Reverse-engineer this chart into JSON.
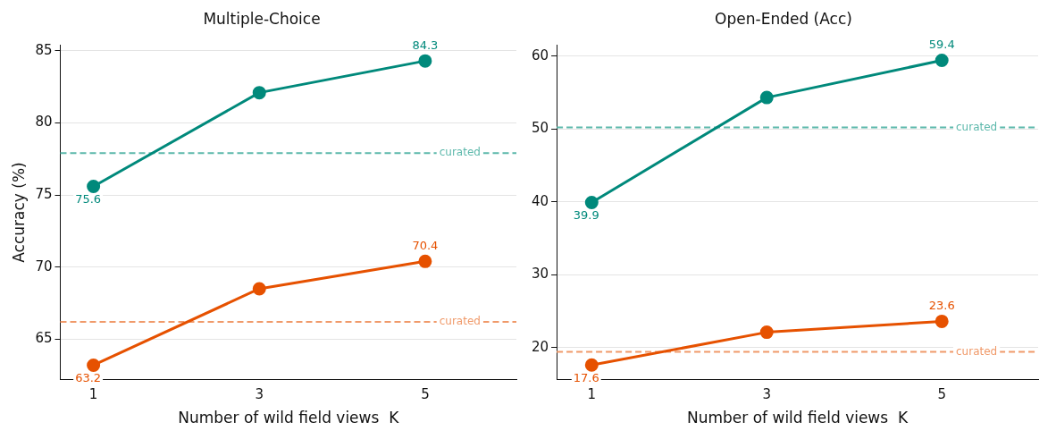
{
  "chart_data": [
    {
      "type": "line",
      "title": "Multiple-Choice",
      "xlabel": "Number of wild field views  K",
      "ylabel": "Accuracy (%)",
      "x": [
        1,
        3,
        5
      ],
      "xlim": [
        0.6,
        6.1
      ],
      "xticks": [
        1,
        3,
        5
      ],
      "ylim": [
        62.2,
        85.4
      ],
      "yticks": [
        65,
        70,
        75,
        80,
        85
      ],
      "grid": "y",
      "marker": "circle",
      "series": [
        {
          "color": "#00897b",
          "values": [
            75.6,
            82.1,
            84.3
          ],
          "value_labels": [
            "75.6",
            null,
            "84.3"
          ]
        },
        {
          "color": "#e65100",
          "values": [
            63.2,
            68.5,
            70.4
          ],
          "value_labels": [
            "63.2",
            null,
            "70.4"
          ]
        }
      ],
      "ref_lines": [
        {
          "axis": "y",
          "value": 77.9,
          "label": "curated",
          "color": "#5cb8ab",
          "line_style": "dashed"
        },
        {
          "axis": "y",
          "value": 66.2,
          "label": "curated",
          "color": "#f09a6a",
          "line_style": "dashed"
        }
      ]
    },
    {
      "type": "line",
      "title": "Open-Ended (Acc)",
      "xlabel": "Number of wild field views  K",
      "x": [
        1,
        3,
        5
      ],
      "xlim": [
        0.6,
        6.1
      ],
      "xticks": [
        1,
        3,
        5
      ],
      "ylim": [
        15.6,
        61.5
      ],
      "yticks": [
        20,
        30,
        40,
        50,
        60
      ],
      "grid": "y",
      "marker": "circle",
      "series": [
        {
          "color": "#00897b",
          "values": [
            39.9,
            54.3,
            59.4
          ],
          "value_labels": [
            "39.9",
            null,
            "59.4"
          ]
        },
        {
          "color": "#e65100",
          "values": [
            17.6,
            22.1,
            23.6
          ],
          "value_labels": [
            "17.6",
            null,
            "23.6"
          ]
        }
      ],
      "ref_lines": [
        {
          "axis": "y",
          "value": 50.2,
          "label": "curated",
          "color": "#5cb8ab",
          "line_style": "dashed"
        },
        {
          "axis": "y",
          "value": 19.4,
          "label": "curated",
          "color": "#f09a6a",
          "line_style": "dashed"
        }
      ]
    }
  ]
}
